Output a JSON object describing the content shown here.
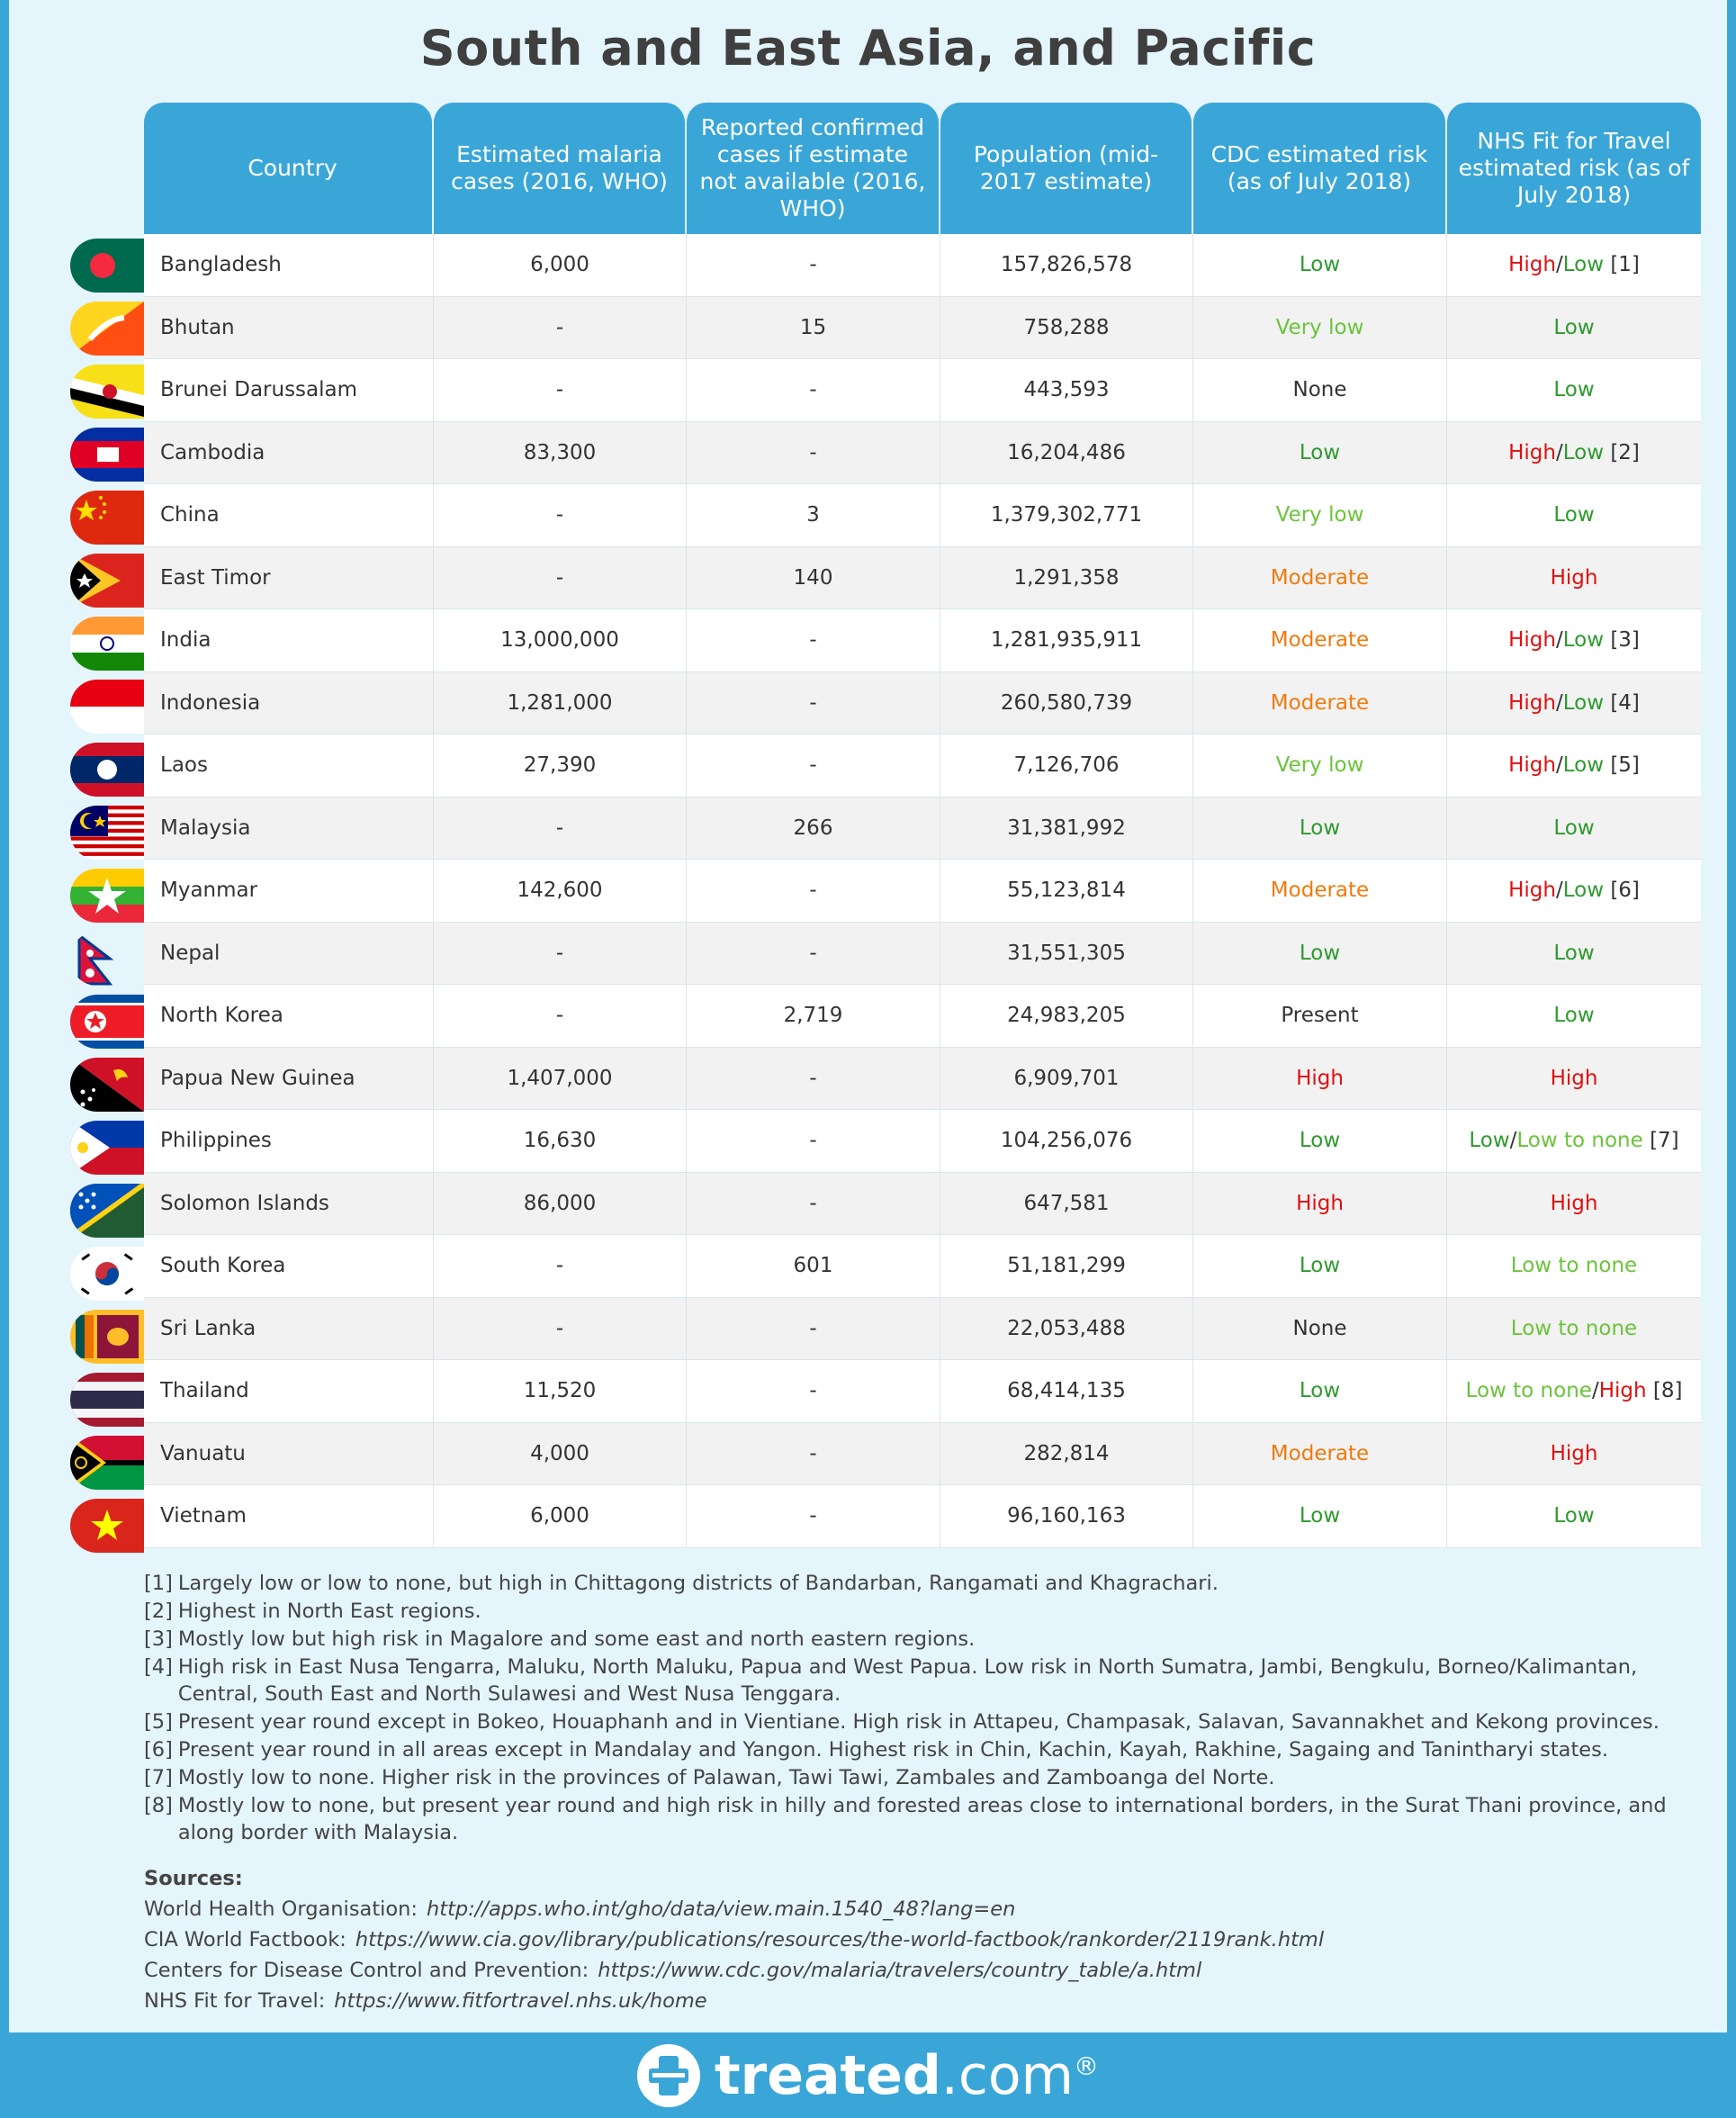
{
  "title": "South and East Asia, and Pacific",
  "headers": {
    "country": "Country",
    "estimated": "Estimated malaria cases (2016, WHO)",
    "reported": "Reported confirmed cases if estimate not available (2016, WHO)",
    "population": "Population (mid-2017 estimate)",
    "cdc": "CDC estimated risk (as of July 2018)",
    "nhs": "NHS Fit for Travel estimated risk (as of July 2018)"
  },
  "rows": [
    {
      "country": "Bangladesh",
      "flag": "bangladesh-flag",
      "estimated": "6,000",
      "reported": "-",
      "population": "157,826,578",
      "cdc": [
        {
          "t": "Low",
          "c": "low"
        }
      ],
      "nhs": [
        {
          "t": "High",
          "c": "high"
        },
        {
          "t": "/",
          "c": "none"
        },
        {
          "t": "Low",
          "c": "low"
        },
        {
          "t": " [1]",
          "c": "none"
        }
      ]
    },
    {
      "country": "Bhutan",
      "flag": "bhutan-flag",
      "estimated": "-",
      "reported": "15",
      "population": "758,288",
      "cdc": [
        {
          "t": "Very low",
          "c": "vlow"
        }
      ],
      "nhs": [
        {
          "t": "Low",
          "c": "low"
        }
      ]
    },
    {
      "country": "Brunei Darussalam",
      "flag": "brunei-flag",
      "estimated": "-",
      "reported": "-",
      "population": "443,593",
      "cdc": [
        {
          "t": "None",
          "c": "none"
        }
      ],
      "nhs": [
        {
          "t": "Low",
          "c": "low"
        }
      ]
    },
    {
      "country": "Cambodia",
      "flag": "cambodia-flag",
      "estimated": "83,300",
      "reported": "-",
      "population": "16,204,486",
      "cdc": [
        {
          "t": "Low",
          "c": "low"
        }
      ],
      "nhs": [
        {
          "t": "High",
          "c": "high"
        },
        {
          "t": "/",
          "c": "none"
        },
        {
          "t": "Low",
          "c": "low"
        },
        {
          "t": " [2]",
          "c": "none"
        }
      ]
    },
    {
      "country": "China",
      "flag": "china-flag",
      "estimated": "-",
      "reported": "3",
      "population": "1,379,302,771",
      "cdc": [
        {
          "t": "Very low",
          "c": "vlow"
        }
      ],
      "nhs": [
        {
          "t": "Low",
          "c": "low"
        }
      ]
    },
    {
      "country": "East Timor",
      "flag": "east-timor-flag",
      "estimated": "-",
      "reported": "140",
      "population": "1,291,358",
      "cdc": [
        {
          "t": "Moderate",
          "c": "mod"
        }
      ],
      "nhs": [
        {
          "t": "High",
          "c": "high"
        }
      ]
    },
    {
      "country": "India",
      "flag": "india-flag",
      "estimated": "13,000,000",
      "reported": "-",
      "population": "1,281,935,911",
      "cdc": [
        {
          "t": "Moderate",
          "c": "mod"
        }
      ],
      "nhs": [
        {
          "t": "High",
          "c": "high"
        },
        {
          "t": "/",
          "c": "none"
        },
        {
          "t": "Low",
          "c": "low"
        },
        {
          "t": " [3]",
          "c": "none"
        }
      ]
    },
    {
      "country": "Indonesia",
      "flag": "indonesia-flag",
      "estimated": "1,281,000",
      "reported": "-",
      "population": "260,580,739",
      "cdc": [
        {
          "t": "Moderate",
          "c": "mod"
        }
      ],
      "nhs": [
        {
          "t": "High",
          "c": "high"
        },
        {
          "t": "/",
          "c": "none"
        },
        {
          "t": "Low",
          "c": "low"
        },
        {
          "t": " [4]",
          "c": "none"
        }
      ]
    },
    {
      "country": "Laos",
      "flag": "laos-flag",
      "estimated": "27,390",
      "reported": "-",
      "population": "7,126,706",
      "cdc": [
        {
          "t": "Very low",
          "c": "vlow"
        }
      ],
      "nhs": [
        {
          "t": "High",
          "c": "high"
        },
        {
          "t": "/",
          "c": "none"
        },
        {
          "t": "Low",
          "c": "low"
        },
        {
          "t": " [5]",
          "c": "none"
        }
      ]
    },
    {
      "country": "Malaysia",
      "flag": "malaysia-flag",
      "estimated": "-",
      "reported": "266",
      "population": "31,381,992",
      "cdc": [
        {
          "t": "Low",
          "c": "low"
        }
      ],
      "nhs": [
        {
          "t": "Low",
          "c": "low"
        }
      ]
    },
    {
      "country": "Myanmar",
      "flag": "myanmar-flag",
      "estimated": "142,600",
      "reported": "-",
      "population": "55,123,814",
      "cdc": [
        {
          "t": "Moderate",
          "c": "mod"
        }
      ],
      "nhs": [
        {
          "t": "High",
          "c": "high"
        },
        {
          "t": "/",
          "c": "none"
        },
        {
          "t": "Low",
          "c": "low"
        },
        {
          "t": " [6]",
          "c": "none"
        }
      ]
    },
    {
      "country": "Nepal",
      "flag": "nepal-flag",
      "estimated": "-",
      "reported": "-",
      "population": "31,551,305",
      "cdc": [
        {
          "t": "Low",
          "c": "low"
        }
      ],
      "nhs": [
        {
          "t": "Low",
          "c": "low"
        }
      ]
    },
    {
      "country": "North Korea",
      "flag": "north-korea-flag",
      "estimated": "-",
      "reported": "2,719",
      "population": "24,983,205",
      "cdc": [
        {
          "t": "Present",
          "c": "none"
        }
      ],
      "nhs": [
        {
          "t": "Low",
          "c": "low"
        }
      ]
    },
    {
      "country": "Papua New Guinea",
      "flag": "papua-new-guinea-flag",
      "estimated": "1,407,000",
      "reported": "-",
      "population": "6,909,701",
      "cdc": [
        {
          "t": "High",
          "c": "high"
        }
      ],
      "nhs": [
        {
          "t": "High",
          "c": "high"
        }
      ]
    },
    {
      "country": "Philippines",
      "flag": "philippines-flag",
      "estimated": "16,630",
      "reported": "-",
      "population": "104,256,076",
      "cdc": [
        {
          "t": "Low",
          "c": "low"
        }
      ],
      "nhs": [
        {
          "t": "Low",
          "c": "low"
        },
        {
          "t": "/",
          "c": "none"
        },
        {
          "t": "Low to none",
          "c": "ltn"
        },
        {
          "t": " [7]",
          "c": "none"
        }
      ]
    },
    {
      "country": "Solomon Islands",
      "flag": "solomon-islands-flag",
      "estimated": "86,000",
      "reported": "-",
      "population": "647,581",
      "cdc": [
        {
          "t": "High",
          "c": "high"
        }
      ],
      "nhs": [
        {
          "t": "High",
          "c": "high"
        }
      ]
    },
    {
      "country": "South Korea",
      "flag": "south-korea-flag",
      "estimated": "-",
      "reported": "601",
      "population": "51,181,299",
      "cdc": [
        {
          "t": "Low",
          "c": "low"
        }
      ],
      "nhs": [
        {
          "t": "Low to none",
          "c": "ltn"
        }
      ]
    },
    {
      "country": "Sri Lanka",
      "flag": "sri-lanka-flag",
      "estimated": "-",
      "reported": "-",
      "population": "22,053,488",
      "cdc": [
        {
          "t": "None",
          "c": "none"
        }
      ],
      "nhs": [
        {
          "t": "Low to none",
          "c": "ltn"
        }
      ]
    },
    {
      "country": "Thailand",
      "flag": "thailand-flag",
      "estimated": "11,520",
      "reported": "-",
      "population": "68,414,135",
      "cdc": [
        {
          "t": "Low",
          "c": "low"
        }
      ],
      "nhs": [
        {
          "t": "Low to none",
          "c": "ltn"
        },
        {
          "t": "/",
          "c": "none"
        },
        {
          "t": "High",
          "c": "high"
        },
        {
          "t": " [8]",
          "c": "none"
        }
      ]
    },
    {
      "country": "Vanuatu",
      "flag": "vanuatu-flag",
      "estimated": "4,000",
      "reported": "-",
      "population": "282,814",
      "cdc": [
        {
          "t": "Moderate",
          "c": "mod"
        }
      ],
      "nhs": [
        {
          "t": "High",
          "c": "high"
        }
      ]
    },
    {
      "country": "Vietnam",
      "flag": "vietnam-flag",
      "estimated": "6,000",
      "reported": "-",
      "population": "96,160,163",
      "cdc": [
        {
          "t": "Low",
          "c": "low"
        }
      ],
      "nhs": [
        {
          "t": "Low",
          "c": "low"
        }
      ]
    }
  ],
  "notes": [
    {
      "ref": "[1]",
      "text": "Largely low or low to none, but high in Chittagong districts of Bandarban, Rangamati and Khagrachari."
    },
    {
      "ref": "[2]",
      "text": "Highest in North East regions."
    },
    {
      "ref": "[3]",
      "text": "Mostly low but high risk in Magalore and some east and north eastern regions."
    },
    {
      "ref": "[4]",
      "text": "High risk in East Nusa Tengarra, Maluku, North Maluku, Papua and West Papua. Low risk in North Sumatra, Jambi, Bengkulu, Borneo/Kalimantan, Central, South East and North Sulawesi and West Nusa Tenggara."
    },
    {
      "ref": "[5]",
      "text": "Present year round except in Bokeo, Houaphanh and in Vientiane. High risk in Attapeu, Champasak, Salavan, Savannakhet and Kekong provinces."
    },
    {
      "ref": "[6]",
      "text": "Present year round in all areas except in Mandalay and Yangon. Highest risk in Chin, Kachin, Kayah, Rakhine, Sagaing and Tanintharyi states."
    },
    {
      "ref": "[7]",
      "text": "Mostly low to none. Higher risk in the provinces of Palawan, Tawi Tawi, Zambales and Zamboanga del Norte."
    },
    {
      "ref": "[8]",
      "text": "Mostly low to none, but present year round and high risk in hilly and forested areas close to international borders, in the Surat Thani province, and along border with Malaysia."
    }
  ],
  "sources": {
    "heading": "Sources:",
    "items": [
      {
        "label": "World Health Organisation:",
        "url": "http://apps.who.int/gho/data/view.main.1540_48?lang=en"
      },
      {
        "label": "CIA World Factbook:",
        "url": "https://www.cia.gov/library/publications/resources/the-world-factbook/rankorder/2119rank.html"
      },
      {
        "label": "Centers for Disease Control and Prevention:",
        "url": "https://www.cdc.gov/malaria/travelers/country_table/a.html"
      },
      {
        "label": "NHS Fit for Travel:",
        "url": "https://www.fitfortravel.nhs.uk/home"
      }
    ]
  },
  "brand": {
    "bold": "treated",
    "rest": ".com",
    "mark": "®"
  },
  "colors": {
    "accent": "#3aa6d8",
    "panel": "#e4f5fc",
    "low": "#2e9a2e",
    "very_low": "#6ac43a",
    "moderate": "#f07a0c",
    "high": "#e01010"
  }
}
